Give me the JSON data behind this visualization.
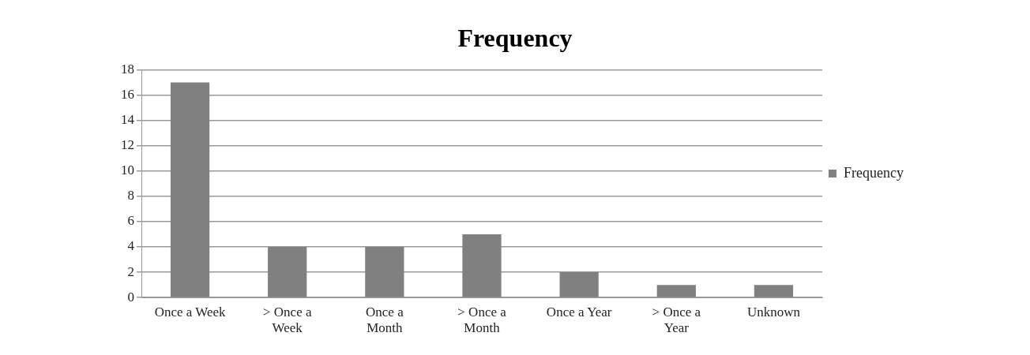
{
  "chart_data": {
    "type": "bar",
    "title": "Frequency",
    "categories": [
      "Once a Week",
      "> Once a Week",
      "Once a Month",
      "> Once a Month",
      "Once a Year",
      "> Once a Year",
      "Unknown"
    ],
    "series": [
      {
        "name": "Frequency",
        "color": "#808080",
        "values": [
          17,
          4,
          4,
          5,
          2,
          1,
          1
        ]
      }
    ],
    "ylim": [
      0,
      18
    ],
    "yticks": [
      0,
      2,
      4,
      6,
      8,
      10,
      12,
      14,
      16,
      18
    ],
    "grid": "y",
    "legend": "right"
  }
}
